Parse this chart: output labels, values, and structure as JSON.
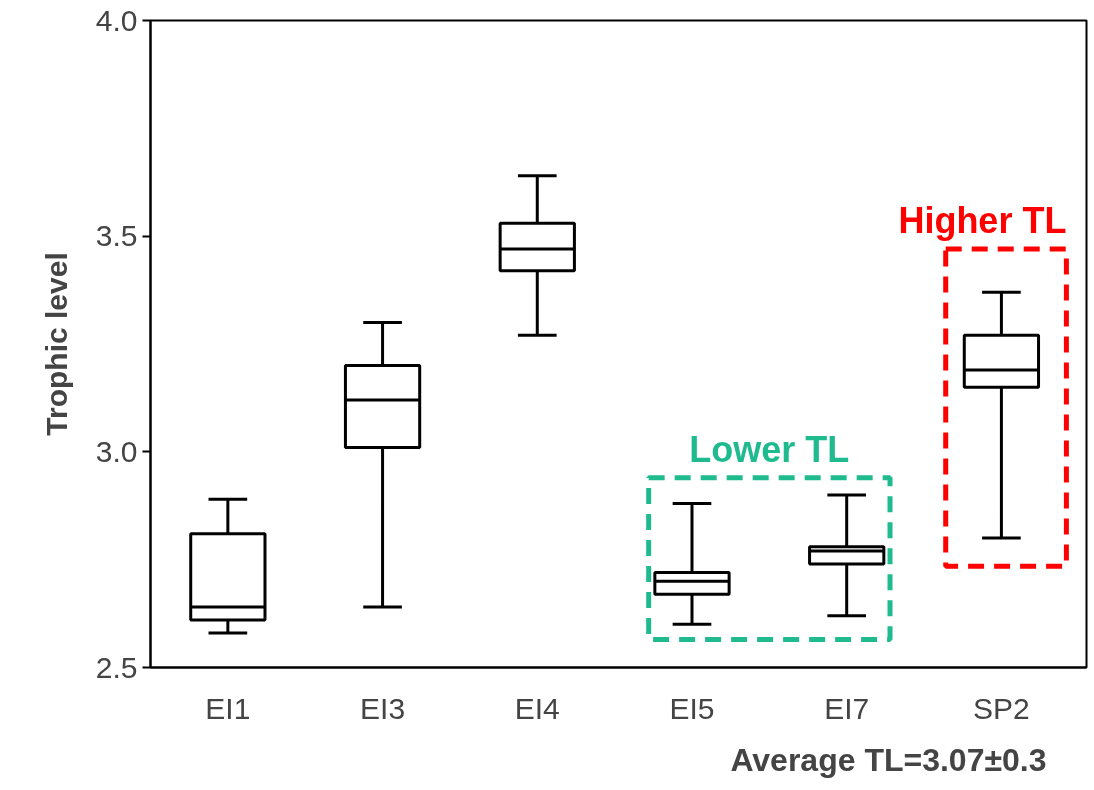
{
  "chart_data": {
    "type": "box",
    "ylabel": "Trophic level",
    "categories": [
      "EI1",
      "EI3",
      "EI4",
      "EI5",
      "EI7",
      "SP2"
    ],
    "boxes": [
      {
        "low": 2.58,
        "q1": 2.61,
        "median": 2.64,
        "q3": 2.81,
        "high": 2.89
      },
      {
        "low": 2.64,
        "q1": 3.01,
        "median": 3.12,
        "q3": 3.2,
        "high": 3.3
      },
      {
        "low": 3.27,
        "q1": 3.42,
        "median": 3.47,
        "q3": 3.53,
        "high": 3.64
      },
      {
        "low": 2.6,
        "q1": 2.67,
        "median": 2.7,
        "q3": 2.72,
        "high": 2.88
      },
      {
        "low": 2.62,
        "q1": 2.74,
        "median": 2.77,
        "q3": 2.78,
        "high": 2.9
      },
      {
        "low": 2.8,
        "q1": 3.15,
        "median": 3.19,
        "q3": 3.27,
        "high": 3.37
      }
    ],
    "color": "#000000",
    "ylim": [
      2.5,
      4.0
    ],
    "yticks": [
      2.5,
      {
        "value": 3.0,
        "label": "3.0"
      },
      3.5,
      {
        "value": 4.0,
        "label": "4.0"
      }
    ],
    "grid": false,
    "annotations": [
      "Lower TL",
      "Higher TL",
      "Average TL=3.07±0.3"
    ]
  }
}
